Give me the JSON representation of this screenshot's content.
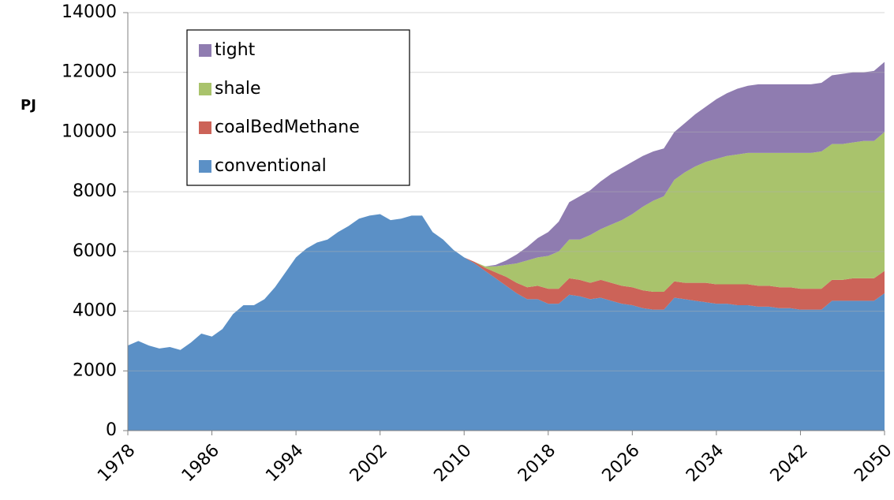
{
  "chart_data": {
    "type": "stacked-area",
    "y_label": "PJ",
    "x": [
      1978,
      1979,
      1980,
      1981,
      1982,
      1983,
      1984,
      1985,
      1986,
      1987,
      1988,
      1989,
      1990,
      1991,
      1992,
      1993,
      1994,
      1995,
      1996,
      1997,
      1998,
      1999,
      2000,
      2001,
      2002,
      2003,
      2004,
      2005,
      2006,
      2007,
      2008,
      2009,
      2010,
      2011,
      2012,
      2013,
      2014,
      2015,
      2016,
      2017,
      2018,
      2019,
      2020,
      2021,
      2022,
      2023,
      2024,
      2025,
      2026,
      2027,
      2028,
      2029,
      2030,
      2031,
      2032,
      2033,
      2034,
      2035,
      2036,
      2037,
      2038,
      2039,
      2040,
      2041,
      2042,
      2043,
      2044,
      2045,
      2046,
      2047,
      2048,
      2049,
      2050
    ],
    "series": [
      {
        "name": "conventional",
        "color": "#5b90c6",
        "values": [
          2850,
          3000,
          2850,
          2750,
          2800,
          2700,
          2950,
          3250,
          3150,
          3400,
          3900,
          4200,
          4200,
          4400,
          4800,
          5300,
          5800,
          6100,
          6300,
          6400,
          6650,
          6850,
          7100,
          7200,
          7250,
          7050,
          7100,
          7200,
          7200,
          6650,
          6400,
          6050,
          5800,
          5600,
          5350,
          5100,
          4850,
          4600,
          4400,
          4400,
          4250,
          4250,
          4550,
          4500,
          4400,
          4450,
          4350,
          4250,
          4200,
          4100,
          4050,
          4050,
          4450,
          4400,
          4350,
          4300,
          4250,
          4250,
          4200,
          4200,
          4150,
          4150,
          4100,
          4100,
          4050,
          4050,
          4050,
          4350,
          4350,
          4350,
          4350,
          4350,
          4600
        ]
      },
      {
        "name": "coalBedMethane",
        "color": "#cc6358",
        "values": [
          0,
          0,
          0,
          0,
          0,
          0,
          0,
          0,
          0,
          0,
          0,
          0,
          0,
          0,
          0,
          0,
          0,
          0,
          0,
          0,
          0,
          0,
          0,
          0,
          0,
          0,
          0,
          0,
          0,
          0,
          0,
          0,
          0,
          50,
          100,
          200,
          300,
          350,
          400,
          450,
          500,
          500,
          550,
          550,
          550,
          600,
          600,
          600,
          600,
          600,
          600,
          600,
          550,
          550,
          600,
          650,
          650,
          650,
          700,
          700,
          700,
          700,
          700,
          700,
          700,
          700,
          700,
          700,
          700,
          750,
          750,
          750,
          750
        ]
      },
      {
        "name": "shale",
        "color": "#a9c36c",
        "values": [
          0,
          0,
          0,
          0,
          0,
          0,
          0,
          0,
          0,
          0,
          0,
          0,
          0,
          0,
          0,
          0,
          0,
          0,
          0,
          0,
          0,
          0,
          0,
          0,
          0,
          0,
          0,
          0,
          0,
          0,
          0,
          0,
          0,
          0,
          50,
          200,
          400,
          650,
          900,
          950,
          1100,
          1250,
          1300,
          1350,
          1600,
          1700,
          1950,
          2200,
          2450,
          2800,
          3050,
          3200,
          3400,
          3700,
          3900,
          4050,
          4200,
          4300,
          4350,
          4400,
          4450,
          4450,
          4500,
          4500,
          4550,
          4550,
          4600,
          4550,
          4550,
          4550,
          4600,
          4600,
          4650
        ]
      },
      {
        "name": "tight",
        "color": "#8f7cb0",
        "values": [
          0,
          0,
          0,
          0,
          0,
          0,
          0,
          0,
          0,
          0,
          0,
          0,
          0,
          0,
          0,
          0,
          0,
          0,
          0,
          0,
          0,
          0,
          0,
          0,
          0,
          0,
          0,
          0,
          0,
          0,
          0,
          0,
          0,
          0,
          0,
          50,
          150,
          300,
          450,
          650,
          800,
          1000,
          1250,
          1450,
          1500,
          1600,
          1700,
          1750,
          1750,
          1700,
          1650,
          1600,
          1600,
          1650,
          1750,
          1850,
          2000,
          2100,
          2200,
          2250,
          2300,
          2300,
          2300,
          2300,
          2300,
          2300,
          2300,
          2300,
          2350,
          2350,
          2300,
          2350,
          2350
        ]
      }
    ],
    "xlim": [
      1978,
      2050
    ],
    "xticks": [
      1978,
      1986,
      1994,
      2002,
      2010,
      2018,
      2026,
      2034,
      2042,
      2050
    ],
    "ylim": [
      0,
      14000
    ],
    "yticks": [
      0,
      2000,
      4000,
      6000,
      8000,
      10000,
      12000,
      14000
    ],
    "grid": true,
    "legend": "upper-left"
  }
}
